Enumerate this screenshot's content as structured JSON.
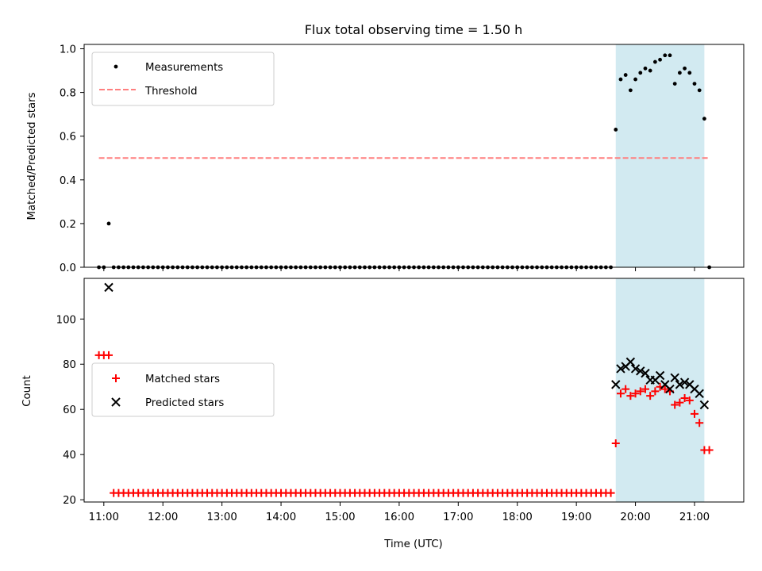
{
  "chart_data": [
    {
      "type": "scatter",
      "title": "Flux total observing time = 1.50 h",
      "xlabel": "",
      "ylabel": "Matched/Predicted stars",
      "ylim": [
        0,
        1.02
      ],
      "yticks": [
        0.0,
        0.2,
        0.4,
        0.6,
        0.8,
        1.0
      ],
      "ytick_labels": [
        "0.0",
        "0.2",
        "0.4",
        "0.6",
        "0.8",
        "1.0"
      ],
      "xlim": [
        "10:40",
        "21:50"
      ],
      "grid": false,
      "legend_position": "upper-left",
      "highlight_span": {
        "from": "19:40",
        "to": "21:10",
        "color": "#add8e6"
      },
      "series": [
        {
          "name": "Measurements",
          "kind": "scatter",
          "marker": "dot",
          "color": "#000000",
          "points": [
            [
              "10:55",
              0.0
            ],
            [
              "11:00",
              0.0
            ],
            [
              "11:05",
              0.2
            ],
            [
              "19:40",
              0.63
            ],
            [
              "19:45",
              0.86
            ],
            [
              "19:50",
              0.88
            ],
            [
              "19:55",
              0.81
            ],
            [
              "20:00",
              0.86
            ],
            [
              "20:05",
              0.89
            ],
            [
              "20:10",
              0.91
            ],
            [
              "20:15",
              0.9
            ],
            [
              "20:20",
              0.94
            ],
            [
              "20:25",
              0.95
            ],
            [
              "20:30",
              0.97
            ],
            [
              "20:35",
              0.97
            ],
            [
              "20:40",
              0.84
            ],
            [
              "20:45",
              0.89
            ],
            [
              "20:50",
              0.91
            ],
            [
              "20:55",
              0.89
            ],
            [
              "21:00",
              0.84
            ],
            [
              "21:05",
              0.81
            ],
            [
              "21:10",
              0.68
            ],
            [
              "21:15",
              0.0
            ]
          ],
          "zero_run": {
            "from": "11:10",
            "to": "19:35",
            "step_minutes": 5,
            "value": 0.0
          }
        },
        {
          "name": "Threshold",
          "kind": "hline",
          "style": "dashed",
          "color": "#ff7f7f",
          "y": 0.5,
          "from": "10:55",
          "to": "21:15"
        }
      ]
    },
    {
      "type": "scatter",
      "title": "",
      "xlabel": "Time (UTC)",
      "ylabel": "Count",
      "ylim": [
        19,
        118
      ],
      "yticks": [
        20,
        40,
        60,
        80,
        100
      ],
      "ytick_labels": [
        "20",
        "40",
        "60",
        "80",
        "100"
      ],
      "xlim": [
        "10:40",
        "21:50"
      ],
      "xticks": [
        "11:00",
        "12:00",
        "13:00",
        "14:00",
        "15:00",
        "16:00",
        "17:00",
        "18:00",
        "19:00",
        "20:00",
        "21:00"
      ],
      "xtick_labels": [
        "11:00",
        "12:00",
        "13:00",
        "14:00",
        "15:00",
        "16:00",
        "17:00",
        "18:00",
        "19:00",
        "20:00",
        "21:00"
      ],
      "grid": false,
      "legend_position": "center-left",
      "highlight_span": {
        "from": "19:40",
        "to": "21:10",
        "color": "#add8e6"
      },
      "series": [
        {
          "name": "Matched stars",
          "kind": "scatter",
          "marker": "plus",
          "color": "#ff0000",
          "points": [
            [
              "10:55",
              84
            ],
            [
              "11:00",
              84
            ],
            [
              "11:05",
              84
            ],
            [
              "19:40",
              45
            ],
            [
              "19:45",
              67
            ],
            [
              "19:50",
              69
            ],
            [
              "19:55",
              66
            ],
            [
              "20:00",
              67
            ],
            [
              "20:05",
              68
            ],
            [
              "20:10",
              69
            ],
            [
              "20:15",
              66
            ],
            [
              "20:20",
              68
            ],
            [
              "20:25",
              70
            ],
            [
              "20:30",
              69
            ],
            [
              "20:35",
              68
            ],
            [
              "20:40",
              62
            ],
            [
              "20:45",
              63
            ],
            [
              "20:50",
              65
            ],
            [
              "20:55",
              64
            ],
            [
              "21:00",
              58
            ],
            [
              "21:05",
              54
            ],
            [
              "21:10",
              42
            ],
            [
              "21:15",
              42
            ]
          ],
          "constant_run": {
            "from": "11:10",
            "to": "19:35",
            "step_minutes": 5,
            "value": 23
          }
        },
        {
          "name": "Predicted stars",
          "kind": "scatter",
          "marker": "x",
          "color": "#000000",
          "points": [
            [
              "11:05",
              114
            ],
            [
              "19:40",
              71
            ],
            [
              "19:45",
              78
            ],
            [
              "19:50",
              79
            ],
            [
              "19:55",
              81
            ],
            [
              "20:00",
              78
            ],
            [
              "20:05",
              77
            ],
            [
              "20:10",
              76
            ],
            [
              "20:15",
              73
            ],
            [
              "20:20",
              73
            ],
            [
              "20:25",
              75
            ],
            [
              "20:30",
              71
            ],
            [
              "20:35",
              69
            ],
            [
              "20:40",
              74
            ],
            [
              "20:45",
              71
            ],
            [
              "20:50",
              72
            ],
            [
              "20:55",
              71
            ],
            [
              "21:00",
              69
            ],
            [
              "21:05",
              67
            ],
            [
              "21:10",
              62
            ]
          ]
        }
      ]
    }
  ]
}
